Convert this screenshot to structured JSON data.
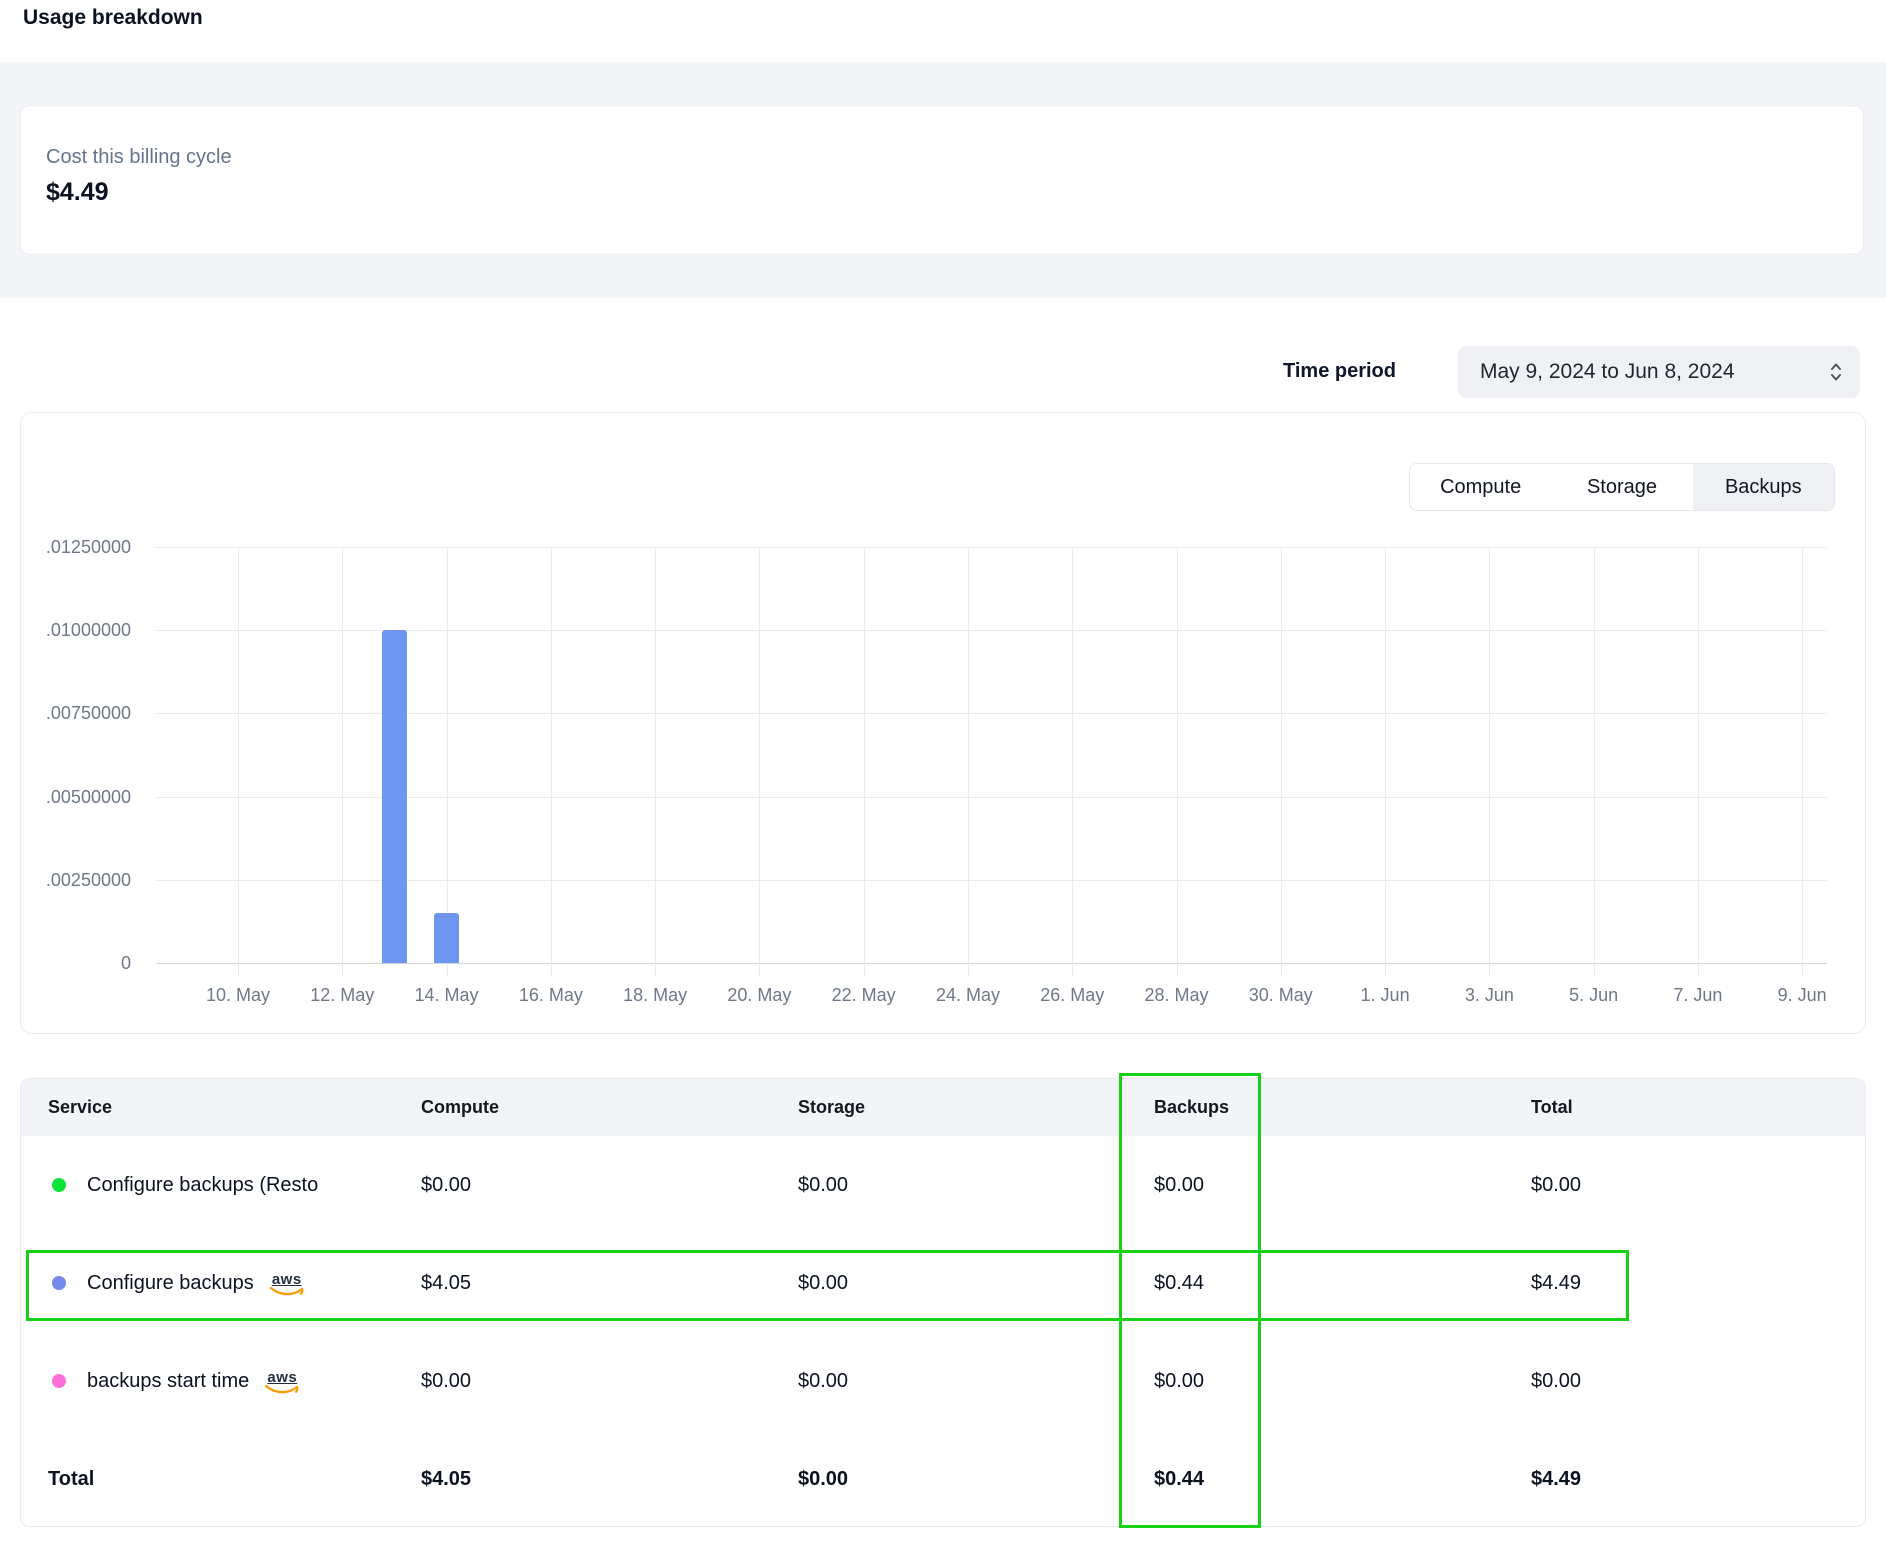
{
  "page": {
    "title": "Usage breakdown"
  },
  "billing_summary": {
    "label": "Cost this billing cycle",
    "value": "$4.49"
  },
  "time_period": {
    "label": "Time period",
    "value": "May 9, 2024 to Jun 8, 2024"
  },
  "chart_tabs": [
    {
      "label": "Compute",
      "active": false
    },
    {
      "label": "Storage",
      "active": false
    },
    {
      "label": "Backups",
      "active": true
    }
  ],
  "chart_data": {
    "type": "bar",
    "title": "Backups usage by day (selected tab: Backups)",
    "x_ticks": [
      "10. May",
      "12. May",
      "14. May",
      "16. May",
      "18. May",
      "20. May",
      "22. May",
      "24. May",
      "26. May",
      "28. May",
      "30. May",
      "1. Jun",
      "3. Jun",
      "5. Jun",
      "7. Jun",
      "9. Jun"
    ],
    "y_ticks": [
      "0",
      ".00250000",
      ".00500000",
      ".00750000",
      ".01000000",
      ".01250000"
    ],
    "ylim": [
      0,
      0.0125
    ],
    "grid": true,
    "legend": "none",
    "bar_color": "#6e95f0",
    "bars": [
      {
        "date": "13. May",
        "day_offset": 4,
        "value": 0.01
      },
      {
        "date": "14. May",
        "day_offset": 5,
        "value": 0.0015
      }
    ]
  },
  "aws_label": "aws",
  "table": {
    "columns": [
      "Service",
      "Compute",
      "Storage",
      "Backups",
      "Total"
    ],
    "rows": [
      {
        "service": "Configure backups (Resto",
        "dot_color": "#0ce43a",
        "has_aws_icon": false,
        "compute": "$0.00",
        "storage": "$0.00",
        "backups": "$0.00",
        "total": "$0.00"
      },
      {
        "service": "Configure backups",
        "dot_color": "#7589ef",
        "has_aws_icon": true,
        "compute": "$4.05",
        "storage": "$0.00",
        "backups": "$0.44",
        "total": "$4.49"
      },
      {
        "service": "backups start time",
        "dot_color": "#f970d6",
        "has_aws_icon": true,
        "compute": "$0.00",
        "storage": "$0.00",
        "backups": "$0.00",
        "total": "$0.00"
      }
    ],
    "total_row": {
      "label": "Total",
      "compute": "$4.05",
      "storage": "$0.00",
      "backups": "$0.44",
      "total": "$4.49"
    }
  },
  "annotations": {
    "color": "#17d117",
    "highlighted_column": "Backups",
    "highlighted_row": "Configure backups"
  }
}
